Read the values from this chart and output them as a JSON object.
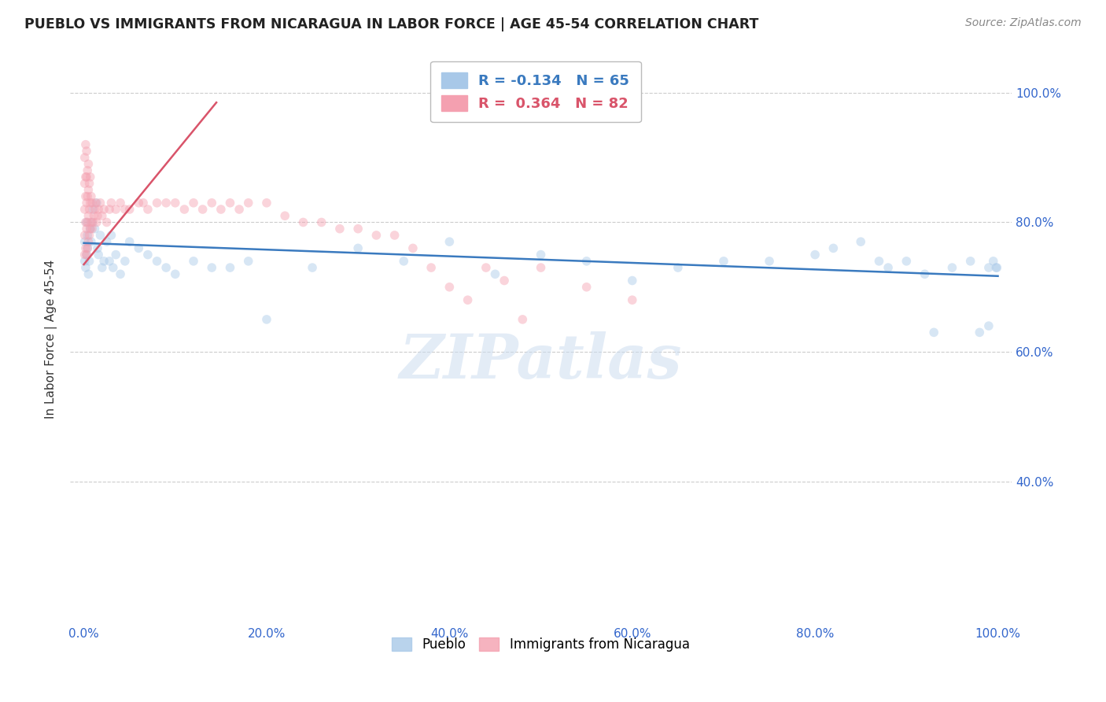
{
  "title": "PUEBLO VS IMMIGRANTS FROM NICARAGUA IN LABOR FORCE | AGE 45-54 CORRELATION CHART",
  "source": "Source: ZipAtlas.com",
  "ylabel": "In Labor Force | Age 45-54",
  "watermark": "ZIPatlas",
  "legend_blue_r": "-0.134",
  "legend_blue_n": "65",
  "legend_pink_r": "0.364",
  "legend_pink_n": "82",
  "blue_color": "#a8c8e8",
  "pink_color": "#f4a0b0",
  "blue_line_color": "#3a7abf",
  "pink_line_color": "#d9546a",
  "background_color": "#ffffff",
  "grid_color": "#cccccc",
  "title_color": "#222222",
  "axis_tick_color": "#3366cc",
  "blue_scatter_x": [
    0.001,
    0.001,
    0.002,
    0.003,
    0.003,
    0.004,
    0.004,
    0.005,
    0.006,
    0.007,
    0.008,
    0.009,
    0.01,
    0.012,
    0.014,
    0.015,
    0.016,
    0.018,
    0.02,
    0.022,
    0.025,
    0.028,
    0.03,
    0.032,
    0.035,
    0.04,
    0.045,
    0.05,
    0.06,
    0.07,
    0.08,
    0.09,
    0.1,
    0.12,
    0.14,
    0.16,
    0.18,
    0.2,
    0.25,
    0.3,
    0.35,
    0.4,
    0.45,
    0.5,
    0.55,
    0.6,
    0.65,
    0.7,
    0.75,
    0.8,
    0.82,
    0.85,
    0.87,
    0.88,
    0.9,
    0.92,
    0.93,
    0.95,
    0.97,
    0.98,
    0.99,
    0.99,
    0.995,
    0.998,
    0.999
  ],
  "blue_scatter_y": [
    0.77,
    0.74,
    0.73,
    0.75,
    0.8,
    0.78,
    0.76,
    0.72,
    0.74,
    0.79,
    0.77,
    0.8,
    0.82,
    0.79,
    0.83,
    0.76,
    0.75,
    0.78,
    0.73,
    0.74,
    0.77,
    0.74,
    0.78,
    0.73,
    0.75,
    0.72,
    0.74,
    0.77,
    0.76,
    0.75,
    0.74,
    0.73,
    0.72,
    0.74,
    0.73,
    0.73,
    0.74,
    0.65,
    0.73,
    0.76,
    0.74,
    0.77,
    0.72,
    0.75,
    0.74,
    0.71,
    0.73,
    0.74,
    0.74,
    0.75,
    0.76,
    0.77,
    0.74,
    0.73,
    0.74,
    0.72,
    0.63,
    0.73,
    0.74,
    0.63,
    0.64,
    0.73,
    0.74,
    0.73,
    0.73
  ],
  "pink_scatter_x": [
    0.001,
    0.001,
    0.001,
    0.001,
    0.001,
    0.002,
    0.002,
    0.002,
    0.002,
    0.002,
    0.003,
    0.003,
    0.003,
    0.003,
    0.003,
    0.004,
    0.004,
    0.004,
    0.004,
    0.005,
    0.005,
    0.005,
    0.005,
    0.006,
    0.006,
    0.006,
    0.007,
    0.007,
    0.007,
    0.008,
    0.008,
    0.009,
    0.009,
    0.01,
    0.011,
    0.012,
    0.013,
    0.014,
    0.015,
    0.016,
    0.018,
    0.02,
    0.022,
    0.025,
    0.028,
    0.03,
    0.035,
    0.04,
    0.045,
    0.05,
    0.06,
    0.065,
    0.07,
    0.08,
    0.09,
    0.1,
    0.11,
    0.12,
    0.13,
    0.14,
    0.15,
    0.16,
    0.17,
    0.18,
    0.2,
    0.22,
    0.24,
    0.26,
    0.28,
    0.3,
    0.32,
    0.34,
    0.36,
    0.38,
    0.4,
    0.42,
    0.44,
    0.46,
    0.48,
    0.5,
    0.55,
    0.6
  ],
  "pink_scatter_y": [
    0.75,
    0.78,
    0.82,
    0.86,
    0.9,
    0.76,
    0.8,
    0.84,
    0.87,
    0.92,
    0.75,
    0.79,
    0.83,
    0.87,
    0.91,
    0.76,
    0.8,
    0.84,
    0.88,
    0.77,
    0.81,
    0.85,
    0.89,
    0.78,
    0.82,
    0.86,
    0.79,
    0.83,
    0.87,
    0.8,
    0.84,
    0.79,
    0.83,
    0.8,
    0.81,
    0.82,
    0.83,
    0.8,
    0.81,
    0.82,
    0.83,
    0.81,
    0.82,
    0.8,
    0.82,
    0.83,
    0.82,
    0.83,
    0.82,
    0.82,
    0.83,
    0.83,
    0.82,
    0.83,
    0.83,
    0.83,
    0.82,
    0.83,
    0.82,
    0.83,
    0.82,
    0.83,
    0.82,
    0.83,
    0.83,
    0.81,
    0.8,
    0.8,
    0.79,
    0.79,
    0.78,
    0.78,
    0.76,
    0.73,
    0.7,
    0.68,
    0.73,
    0.71,
    0.65,
    0.73,
    0.7,
    0.68
  ],
  "blue_trendline_x": [
    0.0,
    1.0
  ],
  "blue_trendline_y": [
    0.768,
    0.717
  ],
  "pink_trendline_x": [
    0.0,
    0.145
  ],
  "pink_trendline_y": [
    0.735,
    0.985
  ],
  "xlim": [
    -0.015,
    1.015
  ],
  "ylim": [
    0.18,
    1.06
  ],
  "xtick_positions": [
    0.0,
    0.2,
    0.4,
    0.6,
    0.8,
    1.0
  ],
  "xtick_labels": [
    "0.0%",
    "20.0%",
    "40.0%",
    "60.0%",
    "80.0%",
    "100.0%"
  ],
  "right_ytick_positions": [
    0.4,
    0.6,
    0.8,
    1.0
  ],
  "right_ytick_labels": [
    "40.0%",
    "60.0%",
    "80.0%",
    "100.0%"
  ],
  "marker_size": 70,
  "marker_alpha": 0.45,
  "line_width": 1.8
}
